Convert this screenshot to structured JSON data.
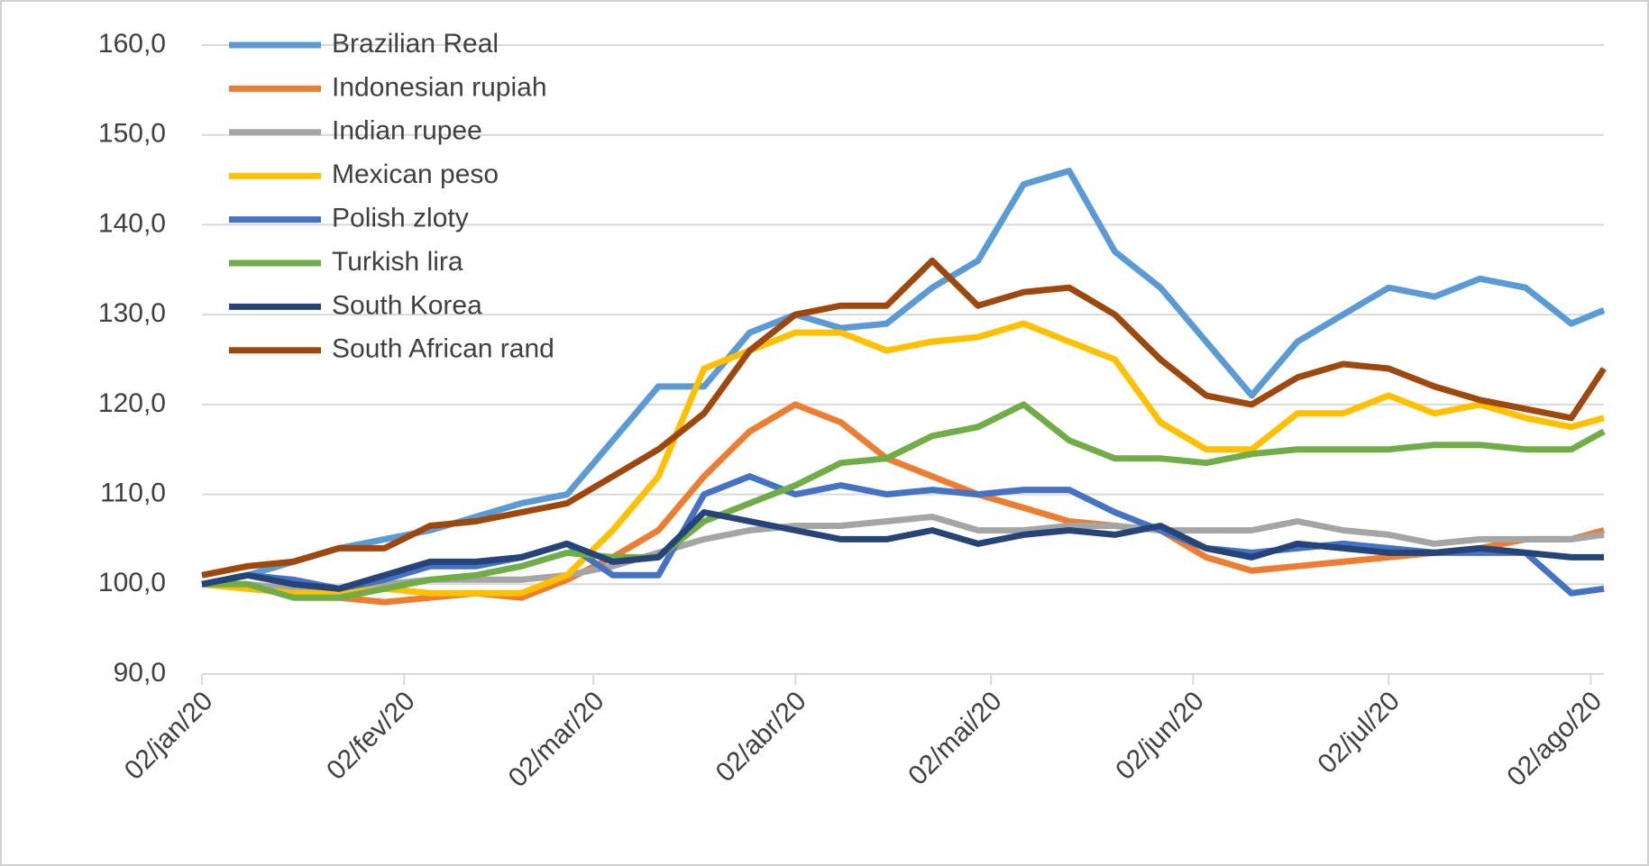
{
  "chart_data": {
    "type": "line",
    "x": [
      "2020-01-02",
      "2020-01-09",
      "2020-01-16",
      "2020-01-23",
      "2020-01-30",
      "2020-02-06",
      "2020-02-13",
      "2020-02-20",
      "2020-02-27",
      "2020-03-05",
      "2020-03-12",
      "2020-03-19",
      "2020-03-26",
      "2020-04-02",
      "2020-04-09",
      "2020-04-16",
      "2020-04-23",
      "2020-04-30",
      "2020-05-07",
      "2020-05-14",
      "2020-05-21",
      "2020-05-28",
      "2020-06-04",
      "2020-06-11",
      "2020-06-18",
      "2020-06-25",
      "2020-07-02",
      "2020-07-09",
      "2020-07-16",
      "2020-07-23",
      "2020-07-30",
      "2020-08-04"
    ],
    "series": [
      {
        "name": "Brazilian Real",
        "color": "#5b9bd5",
        "values": [
          100,
          101,
          102.5,
          104,
          105,
          106,
          107.5,
          109,
          110,
          116,
          122,
          122,
          128,
          130,
          128.5,
          129,
          133,
          136,
          144.5,
          146,
          137,
          133,
          127,
          121,
          127,
          130,
          133,
          132,
          134,
          133,
          129,
          130.5
        ]
      },
      {
        "name": "Indonesian rupiah",
        "color": "#ed7d31",
        "values": [
          100,
          99.5,
          99,
          98.5,
          98,
          98.5,
          99,
          98.5,
          100.5,
          103,
          106,
          112,
          117,
          120,
          118,
          114,
          112,
          110,
          108.5,
          107,
          106.5,
          106,
          103,
          101.5,
          102,
          102.5,
          103,
          103.5,
          104,
          105,
          105,
          106
        ]
      },
      {
        "name": "Indian rupee",
        "color": "#a5a5a5",
        "values": [
          100,
          100,
          99.5,
          99.5,
          100,
          100.5,
          100.5,
          100.5,
          101,
          102,
          103.5,
          105,
          106,
          106.5,
          106.5,
          107,
          107.5,
          106,
          106,
          106.5,
          106.5,
          106,
          106,
          106,
          107,
          106,
          105.5,
          104.5,
          105,
          105,
          105,
          105.5
        ]
      },
      {
        "name": "Mexican peso",
        "color": "#ffc000",
        "values": [
          100,
          99.5,
          99,
          99,
          99.5,
          99,
          99,
          99,
          101,
          106,
          112,
          124,
          126,
          128,
          128,
          126,
          127,
          127.5,
          129,
          127,
          125,
          118,
          115,
          115,
          119,
          119,
          121,
          119,
          120,
          118.5,
          117.5,
          118.5
        ]
      },
      {
        "name": "Polish zloty",
        "color": "#4472c4",
        "values": [
          100,
          101,
          100.5,
          99.5,
          100.5,
          102,
          102,
          103,
          104.5,
          101,
          101,
          110,
          112,
          110,
          111,
          110,
          110.5,
          110,
          110.5,
          110.5,
          108,
          106,
          104,
          103.5,
          104,
          104.5,
          104,
          103.5,
          103.5,
          103.5,
          99,
          99.5
        ]
      },
      {
        "name": "Turkish lira",
        "color": "#70ad47",
        "values": [
          100,
          100,
          98.5,
          98.5,
          99.5,
          100.5,
          101,
          102,
          103.5,
          103,
          103,
          107,
          109,
          111,
          113.5,
          114,
          116.5,
          117.5,
          120,
          116,
          114,
          114,
          113.5,
          114.5,
          115,
          115,
          115,
          115.5,
          115.5,
          115,
          115,
          117
        ]
      },
      {
        "name": "South Korea",
        "color": "#264478",
        "values": [
          100,
          101,
          100,
          99.5,
          101,
          102.5,
          102.5,
          103,
          104.5,
          102.5,
          103,
          108,
          107,
          106,
          105,
          105,
          106,
          104.5,
          105.5,
          106,
          105.5,
          106.5,
          104,
          103,
          104.5,
          104,
          103.5,
          103.5,
          104,
          103.5,
          103,
          103
        ]
      },
      {
        "name": "South African rand",
        "color": "#9e480e",
        "values": [
          101,
          102,
          102.5,
          104,
          104,
          106.5,
          107,
          108,
          109,
          112,
          115,
          119,
          126,
          130,
          131,
          131,
          136,
          131,
          132.5,
          133,
          130,
          125,
          121,
          120,
          123,
          124.5,
          124,
          122,
          120.5,
          119.5,
          118.5,
          124
        ]
      }
    ],
    "xlim": [
      "2020-01-02",
      "2020-08-04"
    ],
    "xticks": [
      {
        "value": "2020-01-02",
        "label": "02/jan/20"
      },
      {
        "value": "2020-02-02",
        "label": "02/fev/20"
      },
      {
        "value": "2020-03-02",
        "label": "02/mar/20"
      },
      {
        "value": "2020-04-02",
        "label": "02/abr/20"
      },
      {
        "value": "2020-05-02",
        "label": "02/mai/20"
      },
      {
        "value": "2020-06-02",
        "label": "02/jun/20"
      },
      {
        "value": "2020-07-02",
        "label": "02/jul/20"
      },
      {
        "value": "2020-08-02",
        "label": "02/ago/20"
      }
    ],
    "ylim": [
      90,
      160
    ],
    "yticks": [
      {
        "value": 90,
        "label": "90,0"
      },
      {
        "value": 100,
        "label": "100,0"
      },
      {
        "value": 110,
        "label": "110,0"
      },
      {
        "value": 120,
        "label": "120,0"
      },
      {
        "value": 130,
        "label": "130,0"
      },
      {
        "value": 140,
        "label": "140,0"
      },
      {
        "value": 150,
        "label": "150,0"
      },
      {
        "value": 160,
        "label": "160,0"
      }
    ],
    "grid": true,
    "legend": "upper-left"
  }
}
